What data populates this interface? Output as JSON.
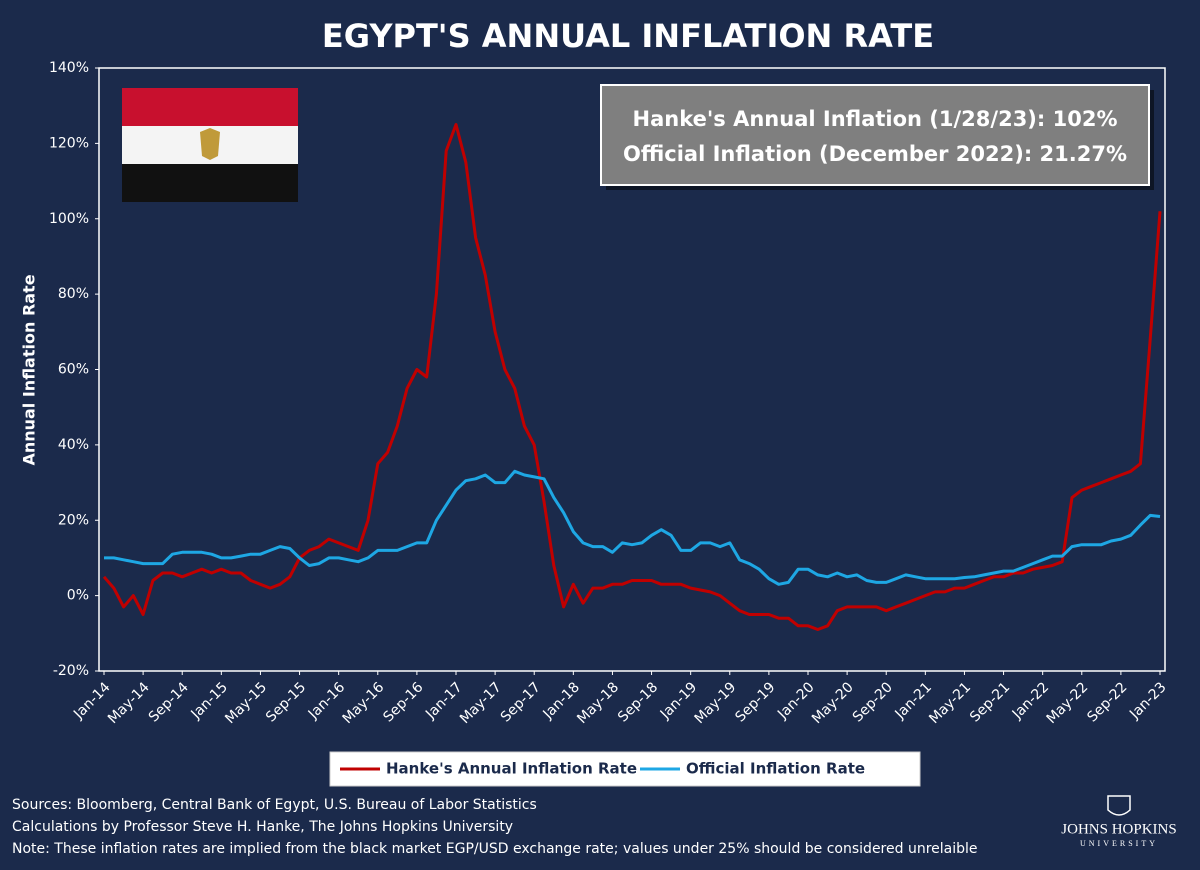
{
  "chart_data": {
    "type": "line",
    "title": "EGYPT'S ANNUAL INFLATION RATE",
    "y_label": "Annual Inflation Rate",
    "annotation": [
      "Hanke's Annual Inflation (1/28/23): 102%",
      "Official Inflation (December 2022): 21.27%"
    ],
    "categories": [
      "Jan-14",
      null,
      null,
      null,
      "May-14",
      null,
      null,
      null,
      "Sep-14",
      null,
      null,
      null,
      "Jan-15",
      null,
      null,
      null,
      "May-15",
      null,
      null,
      null,
      "Sep-15",
      null,
      null,
      null,
      "Jan-16",
      null,
      null,
      null,
      "May-16",
      null,
      null,
      null,
      "Sep-16",
      null,
      null,
      null,
      "Jan-17",
      null,
      null,
      null,
      "May-17",
      null,
      null,
      null,
      "Sep-17",
      null,
      null,
      null,
      "Jan-18",
      null,
      null,
      null,
      "May-18",
      null,
      null,
      null,
      "Sep-18",
      null,
      null,
      null,
      "Jan-19",
      null,
      null,
      null,
      "May-19",
      null,
      null,
      null,
      "Sep-19",
      null,
      null,
      null,
      "Jan-20",
      null,
      null,
      null,
      "May-20",
      null,
      null,
      null,
      "Sep-20",
      null,
      null,
      null,
      "Jan-21",
      null,
      null,
      null,
      "May-21",
      null,
      null,
      null,
      "Sep-21",
      null,
      null,
      null,
      "Jan-22",
      null,
      null,
      null,
      "May-22",
      null,
      null,
      null,
      "Sep-22",
      null,
      null,
      null,
      "Jan-23"
    ],
    "series": [
      {
        "name": "Hanke's Annual Inflation Rate",
        "color": "#c00000",
        "values": [
          5,
          2,
          -3,
          0,
          -5,
          4,
          6,
          6,
          5,
          6,
          7,
          6,
          7,
          6,
          6,
          4,
          3,
          2,
          3,
          5,
          10,
          12,
          13,
          15,
          14,
          13,
          12,
          20,
          35,
          38,
          45,
          55,
          60,
          58,
          80,
          118,
          125,
          115,
          95,
          85,
          70,
          60,
          55,
          45,
          40,
          25,
          8,
          -3,
          3,
          -2,
          2,
          2,
          3,
          3,
          4,
          4,
          4,
          3,
          3,
          3,
          2,
          1.5,
          1,
          0,
          -2,
          -4,
          -5,
          -5,
          -5,
          -6,
          -6,
          -8,
          -8,
          -9,
          -8,
          -4,
          -3,
          -3,
          -3,
          -3,
          -4,
          -3,
          -2,
          -1,
          0,
          1,
          1,
          2,
          2,
          3,
          4,
          5,
          5,
          6,
          6,
          7,
          7.5,
          8,
          9,
          26,
          28,
          29,
          30,
          31,
          32,
          33,
          35,
          68,
          102
        ]
      },
      {
        "name": "Official Inflation Rate",
        "color": "#1ea7e4",
        "values": [
          10,
          10,
          9.5,
          9,
          8.5,
          8.5,
          8.5,
          11,
          11.5,
          11.5,
          11.5,
          11,
          10,
          10,
          10.5,
          11,
          11,
          12,
          13,
          12.5,
          10,
          8,
          8.5,
          10,
          10,
          9.5,
          9,
          10,
          12,
          12,
          12,
          13,
          14,
          14,
          20,
          24,
          28,
          30.5,
          31,
          32,
          30,
          30,
          33,
          32,
          31.5,
          31,
          26,
          22,
          17,
          14,
          13,
          13,
          11.5,
          14,
          13.5,
          14,
          16,
          17.5,
          16,
          12,
          12,
          14,
          14,
          13,
          14,
          9.5,
          8.5,
          7,
          4.5,
          3,
          3.5,
          7,
          7,
          5.5,
          5,
          6,
          5,
          5.5,
          4,
          3.5,
          3.5,
          4.5,
          5.5,
          5,
          4.5,
          4.5,
          4.5,
          4.5,
          4.8,
          5,
          5.5,
          6,
          6.5,
          6.5,
          7.5,
          8.5,
          9.5,
          10.5,
          10.5,
          13,
          13.5,
          13.5,
          13.5,
          14.5,
          15,
          16,
          18.7,
          21.3,
          21
        ]
      }
    ],
    "ylim": [
      -20,
      140
    ],
    "yticks": [
      {
        "value": -20,
        "label": "-20%"
      },
      {
        "value": 0,
        "label": "0%"
      },
      {
        "value": 20,
        "label": "20%"
      },
      {
        "value": 40,
        "label": "40%"
      },
      {
        "value": 60,
        "label": "60%"
      },
      {
        "value": 80,
        "label": "80%"
      },
      {
        "value": 100,
        "label": "100%"
      },
      {
        "value": 120,
        "label": "120%"
      },
      {
        "value": 140,
        "label": "140%"
      }
    ],
    "notes": [
      "Sources: Bloomberg, Central Bank of Egypt, U.S. Bureau of Labor Statistics",
      "Calculations by Professor Steve H. Hanke, The Johns Hopkins University",
      "Note: These inflation rates are implied from the black market EGP/USD exchange rate; values under 25% should be considered unrelaible"
    ],
    "logo": [
      "JOHNS HOPKINS",
      "UNIVERSITY"
    ]
  }
}
